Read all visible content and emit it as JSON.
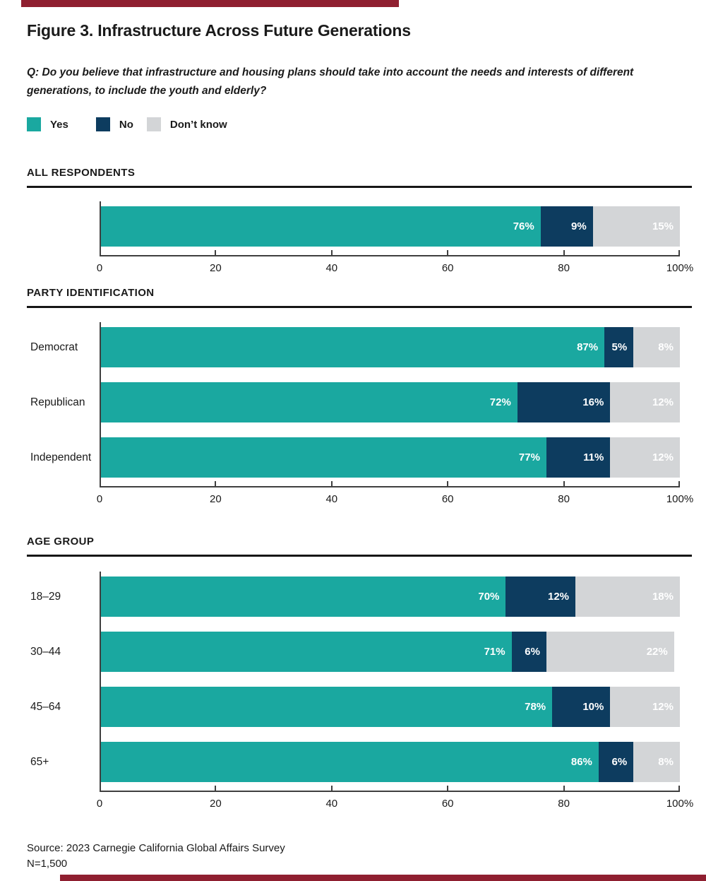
{
  "page_title": "Figure 3. Infrastructure Across Future Generations",
  "question": "Q: Do you believe that infrastructure and housing plans should take into account the needs and interests of different generations, to include the youth and elderly?",
  "legend": {
    "items": [
      {
        "key": "yes",
        "label": "Yes",
        "color": "#1aa8a0"
      },
      {
        "key": "no",
        "label": "No",
        "color": "#0d3c5f"
      },
      {
        "key": "dont-know",
        "label": "Don’t know",
        "color": "#d3d5d7"
      }
    ]
  },
  "colors": {
    "accent_red": "#8f1f30",
    "axis": "#3f3f3f",
    "text": "#1a1a1a",
    "bar_value_label": "#ffffff"
  },
  "chart_data": [
    {
      "type": "bar",
      "stacked": true,
      "orientation": "horizontal",
      "section": "ALL RESPONDENTS",
      "xlim": [
        0,
        100
      ],
      "tick_labels": [
        "0",
        "20",
        "40",
        "60",
        "80",
        "100%"
      ],
      "series_order": [
        "Yes",
        "No",
        "Don’t know"
      ],
      "rows": [
        {
          "label": "",
          "values": [
            76,
            9,
            15
          ]
        }
      ]
    },
    {
      "type": "bar",
      "stacked": true,
      "orientation": "horizontal",
      "section": "PARTY IDENTIFICATION",
      "xlim": [
        0,
        100
      ],
      "tick_labels": [
        "0",
        "20",
        "40",
        "60",
        "80",
        "100%"
      ],
      "series_order": [
        "Yes",
        "No",
        "Don’t know"
      ],
      "rows": [
        {
          "label": "Democrat",
          "values": [
            87,
            5,
            8
          ]
        },
        {
          "label": "Republican",
          "values": [
            72,
            16,
            12
          ]
        },
        {
          "label": "Independent",
          "values": [
            77,
            11,
            12
          ]
        }
      ]
    },
    {
      "type": "bar",
      "stacked": true,
      "orientation": "horizontal",
      "section": "AGE GROUP",
      "xlim": [
        0,
        100
      ],
      "tick_labels": [
        "0",
        "20",
        "40",
        "60",
        "80",
        "100%"
      ],
      "series_order": [
        "Yes",
        "No",
        "Don’t know"
      ],
      "rows": [
        {
          "label": "18–29",
          "values": [
            70,
            12,
            18
          ]
        },
        {
          "label": "30–44",
          "values": [
            71,
            6,
            22
          ]
        },
        {
          "label": "45–64",
          "values": [
            78,
            10,
            12
          ]
        },
        {
          "label": "65+",
          "values": [
            86,
            6,
            8
          ]
        }
      ]
    }
  ],
  "source": {
    "line1": "Source: 2023 Carnegie California Global Affairs Survey",
    "line2": "N=1,500"
  }
}
